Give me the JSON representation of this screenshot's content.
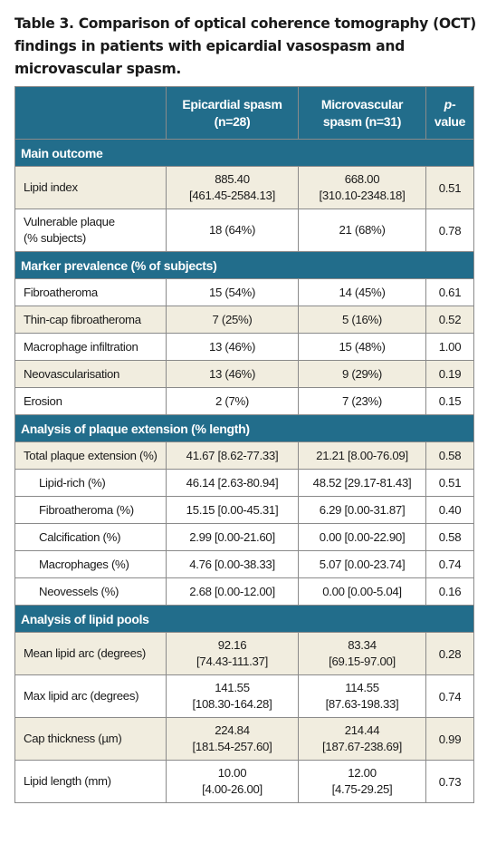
{
  "caption": "Table 3. Comparison of optical coherence tomography (OCT) findings in patients with epicardial vasospasm and microvascular spasm.",
  "header": {
    "col1": "",
    "col2_line1": "Epicardial spasm",
    "col2_line2": "(n=28)",
    "col3_line1": "Microvascular",
    "col3_line2": "spasm (n=31)",
    "col4_italic": "p",
    "col4_rest": "-value"
  },
  "sections": [
    {
      "title": "Main outcome",
      "rows": [
        {
          "label": "Lipid index",
          "epi": "885.40",
          "epi2": "[461.45-2584.13]",
          "micro": "668.00",
          "micro2": "[310.10-2348.18]",
          "p": "0.51"
        },
        {
          "label": "Vulnerable plaque",
          "label2": "(% subjects)",
          "epi": "18 (64%)",
          "micro": "21 (68%)",
          "p": "0.78"
        }
      ]
    },
    {
      "title": "Marker prevalence (% of subjects)",
      "rows": [
        {
          "label": "Fibroatheroma",
          "epi": "15 (54%)",
          "micro": "14 (45%)",
          "p": "0.61"
        },
        {
          "label": "Thin-cap fibroatheroma",
          "epi": "7 (25%)",
          "micro": "5 (16%)",
          "p": "0.52"
        },
        {
          "label": "Macrophage infiltration",
          "epi": "13 (46%)",
          "micro": "15 (48%)",
          "p": "1.00"
        },
        {
          "label": "Neovascularisation",
          "epi": "13 (46%)",
          "micro": "9 (29%)",
          "p": "0.19"
        },
        {
          "label": "Erosion",
          "epi": "2 (7%)",
          "micro": "7 (23%)",
          "p": "0.15"
        }
      ]
    },
    {
      "title": "Analysis of plaque extension (% length)",
      "rows": [
        {
          "label": "Total plaque extension (%)",
          "epi": "41.67 [8.62-77.33]",
          "micro": "21.21 [8.00-76.09]",
          "p": "0.58"
        },
        {
          "label": "Lipid-rich (%)",
          "epi": "46.14 [2.63-80.94]",
          "micro": "48.52 [29.17-81.43]",
          "p": "0.51"
        },
        {
          "label": "Fibroatheroma (%)",
          "epi": "15.15 [0.00-45.31]",
          "micro": "6.29 [0.00-31.87]",
          "p": "0.40"
        },
        {
          "label": "Calcification (%)",
          "epi": "2.99 [0.00-21.60]",
          "micro": "0.00 [0.00-22.90]",
          "p": "0.58"
        },
        {
          "label": "Macrophages (%)",
          "epi": "4.76 [0.00-38.33]",
          "micro": "5.07 [0.00-23.74]",
          "p": "0.74"
        },
        {
          "label": "Neovessels (%)",
          "epi": "2.68 [0.00-12.00]",
          "micro": "0.00 [0.00-5.04]",
          "p": "0.16"
        }
      ]
    },
    {
      "title": "Analysis of lipid pools",
      "rows": [
        {
          "label": "Mean lipid arc (degrees)",
          "epi": "92.16",
          "epi2": "[74.43-111.37]",
          "micro": "83.34",
          "micro2": "[69.15-97.00]",
          "p": "0.28"
        },
        {
          "label": "Max lipid arc (degrees)",
          "epi": "141.55",
          "epi2": "[108.30-164.28]",
          "micro": "114.55",
          "micro2": "[87.63-198.33]",
          "p": "0.74"
        },
        {
          "label": "Cap thickness (µm)",
          "epi": "224.84",
          "epi2": "[181.54-257.60]",
          "micro": "214.44",
          "micro2": "[187.67-238.69]",
          "p": "0.99"
        },
        {
          "label": "Lipid length (mm)",
          "epi": "10.00",
          "epi2": "[4.00-26.00]",
          "micro": "12.00",
          "micro2": "[4.75-29.25]",
          "p": "0.73"
        }
      ]
    }
  ]
}
